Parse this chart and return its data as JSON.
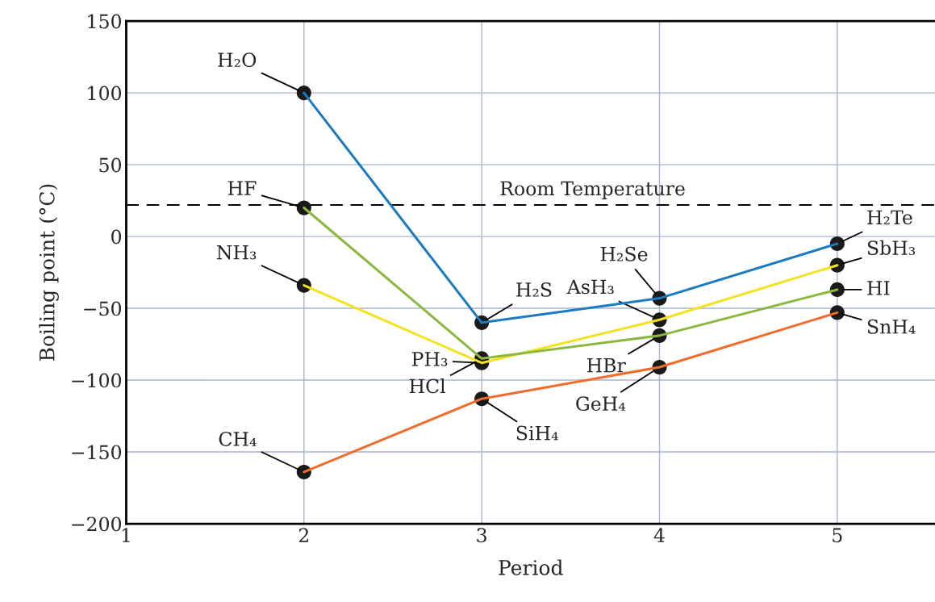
{
  "chart_data": {
    "type": "line",
    "xlabel": "Period",
    "ylabel": "Boiling point (°C)",
    "x": [
      2,
      3,
      4,
      5
    ],
    "series": [
      {
        "color": "#1a7bc0",
        "values": [
          100,
          -60,
          -43,
          -5
        ]
      },
      {
        "color": "#8cb840",
        "values": [
          20,
          -85,
          -69,
          -37
        ]
      },
      {
        "color": "#f5e21e",
        "values": [
          -34,
          -88,
          -58,
          -20
        ]
      },
      {
        "color": "#f26b2b",
        "values": [
          -164,
          -113,
          -91,
          -53
        ]
      }
    ],
    "marker": "circle",
    "line_style": "solid",
    "grid": true,
    "xlim": [
      1,
      5.55
    ],
    "xticks": [
      1,
      2,
      3,
      4,
      5
    ],
    "ylim": [
      -200,
      150
    ],
    "yticks": [
      {
        "value": -200,
        "label": "−200"
      },
      {
        "value": -150,
        "label": "−150"
      },
      {
        "value": -100,
        "label": "−100"
      },
      {
        "value": -50,
        "label": "−50"
      },
      0,
      50,
      100,
      150
    ],
    "ref_lines": [
      {
        "axis": "y",
        "value": 22,
        "label": "Room Temperature",
        "color": "#000000",
        "line_style": "dashed"
      }
    ],
    "annotations": [
      {
        "text": "H₂O",
        "x": 2,
        "y": 100
      },
      {
        "text": "HF",
        "x": 2,
        "y": 20
      },
      {
        "text": "NH₃",
        "x": 2,
        "y": -34
      },
      {
        "text": "CH₄",
        "x": 2,
        "y": -164
      },
      {
        "text": "H₂S",
        "x": 3,
        "y": -60
      },
      {
        "text": "PH₃",
        "x": 3,
        "y": -88
      },
      {
        "text": "HCl",
        "x": 3,
        "y": -85
      },
      {
        "text": "SiH₄",
        "x": 3,
        "y": -113
      },
      {
        "text": "H₂Se",
        "x": 4,
        "y": -43
      },
      {
        "text": "AsH₃",
        "x": 4,
        "y": -58
      },
      {
        "text": "HBr",
        "x": 4,
        "y": -69
      },
      {
        "text": "GeH₄",
        "x": 4,
        "y": -91
      },
      {
        "text": "H₂Te",
        "x": 5,
        "y": -5
      },
      {
        "text": "SbH₃",
        "x": 5,
        "y": -20
      },
      {
        "text": "HI",
        "x": 5,
        "y": -37
      },
      {
        "text": "SnH₄",
        "x": 5,
        "y": -53
      }
    ]
  }
}
